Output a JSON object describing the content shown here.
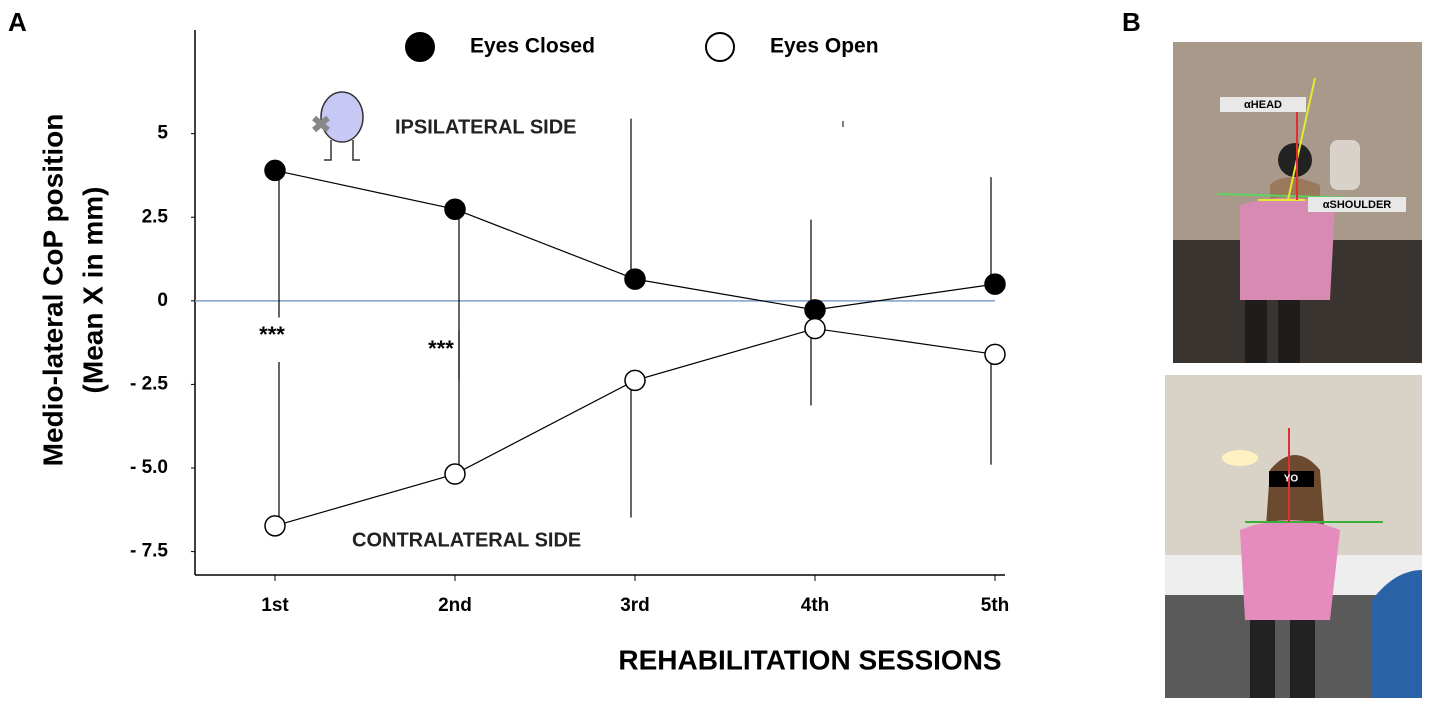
{
  "chart_data": {
    "type": "line",
    "panel_label": "A",
    "y_label": [
      "Medio-lateral CoP position",
      "(Mean X in mm)"
    ],
    "x_label": "REHABILITATION SESSIONS",
    "categories": [
      "1st",
      "2nd",
      "3rd",
      "4th",
      "5th"
    ],
    "ylim": [
      -8.2,
      8.1
    ],
    "yticks": [
      5,
      2.5,
      0,
      {
        "value": -2.5,
        "label": "- 2.5"
      },
      {
        "value": -5,
        "label": "- 5.0"
      },
      {
        "value": -7.5,
        "label": "- 7.5"
      }
    ],
    "reference_line": 0,
    "series": [
      {
        "name": "Eyes Closed",
        "color": "#000000",
        "marker_fill": "#000000",
        "values": [
          3.9,
          2.74,
          0.65,
          -0.27,
          0.5
        ],
        "errors_up": [
          null,
          null,
          4.8,
          2.7,
          3.2
        ],
        "errors_down": [
          4.4,
          5.1,
          null,
          null,
          null
        ]
      },
      {
        "name": "Eyes Open",
        "color": "#000000",
        "marker_fill": "#ffffff",
        "values": [
          -6.73,
          -5.18,
          -2.38,
          -0.83,
          -1.6
        ],
        "errors_up": [
          4.9,
          4.3,
          null,
          null,
          null
        ],
        "errors_down": [
          null,
          null,
          4.1,
          2.3,
          3.3
        ]
      }
    ],
    "annotations": [
      "IPSILATERAL SIDE",
      "CONTRALATERAL SIDE",
      "***",
      "***"
    ]
  },
  "photos": {
    "panel_label": "B",
    "labels": [
      "αHEAD",
      "αSHOULDER",
      "YO"
    ]
  }
}
